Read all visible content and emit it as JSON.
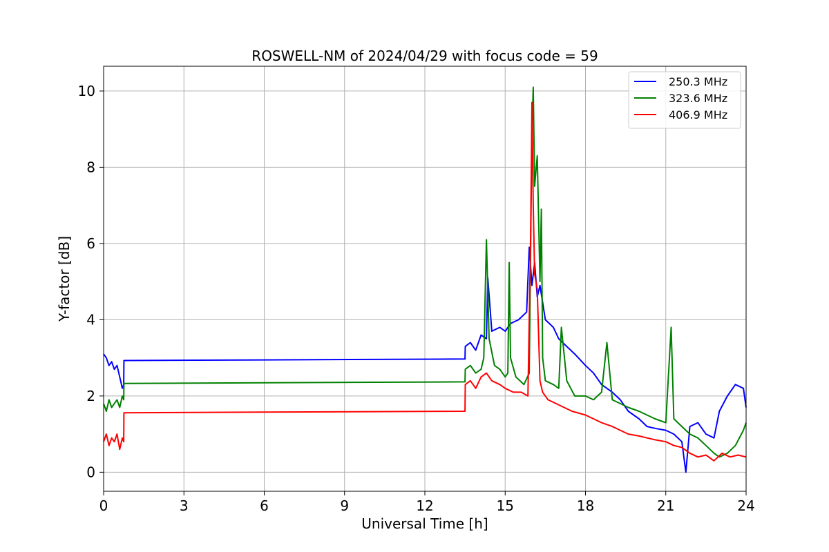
{
  "chart_data": {
    "type": "line",
    "title": "ROSWELL-NM of 2024/04/29 with focus code = 59",
    "xlabel": "Universal Time [h]",
    "ylabel": "Y-factor [dB]",
    "xlim": [
      0,
      24
    ],
    "ylim": [
      -0.5,
      10.65
    ],
    "xticks": [
      0,
      3,
      6,
      9,
      12,
      15,
      18,
      21,
      24
    ],
    "yticks": [
      0,
      2,
      4,
      6,
      8,
      10
    ],
    "grid": true,
    "legend_position": "top-right",
    "series": [
      {
        "name": "250.3 MHz",
        "color": "#0000ff",
        "x": [
          0,
          0.1,
          0.2,
          0.3,
          0.4,
          0.5,
          0.6,
          0.7,
          0.75,
          0.76,
          13.5,
          13.51,
          13.7,
          13.9,
          14.1,
          14.3,
          14.35,
          14.5,
          14.8,
          15.0,
          15.2,
          15.5,
          15.8,
          15.9,
          16.0,
          16.1,
          16.2,
          16.3,
          16.5,
          16.8,
          17.0,
          17.3,
          17.6,
          18.0,
          18.3,
          18.6,
          19.0,
          19.3,
          19.6,
          20.0,
          20.3,
          20.6,
          21.0,
          21.3,
          21.6,
          21.75,
          21.9,
          22.2,
          22.5,
          22.8,
          23.0,
          23.3,
          23.6,
          23.9,
          24.0
        ],
        "y": [
          3.1,
          3.0,
          2.8,
          2.9,
          2.7,
          2.8,
          2.5,
          2.2,
          2.3,
          2.93,
          2.97,
          3.3,
          3.4,
          3.2,
          3.6,
          3.5,
          5.1,
          3.7,
          3.8,
          3.7,
          3.9,
          4.0,
          4.2,
          5.9,
          4.9,
          5.5,
          4.6,
          4.9,
          4.0,
          3.8,
          3.5,
          3.3,
          3.1,
          2.8,
          2.6,
          2.3,
          2.1,
          1.9,
          1.6,
          1.4,
          1.2,
          1.15,
          1.1,
          1.0,
          0.8,
          0.0,
          1.2,
          1.3,
          1.0,
          0.9,
          1.6,
          2.0,
          2.3,
          2.2,
          1.7
        ]
      },
      {
        "name": "323.6 MHz",
        "color": "#008000",
        "x": [
          0,
          0.1,
          0.2,
          0.3,
          0.4,
          0.5,
          0.6,
          0.7,
          0.75,
          0.76,
          13.5,
          13.51,
          13.7,
          13.9,
          14.1,
          14.2,
          14.3,
          14.4,
          14.6,
          14.8,
          15.0,
          15.1,
          15.15,
          15.2,
          15.4,
          15.7,
          15.9,
          16.0,
          16.05,
          16.1,
          16.2,
          16.3,
          16.35,
          16.4,
          16.5,
          16.8,
          17.0,
          17.1,
          17.3,
          17.6,
          18.0,
          18.3,
          18.6,
          18.8,
          19.0,
          19.3,
          19.6,
          20.0,
          20.3,
          20.6,
          21.0,
          21.2,
          21.3,
          21.6,
          21.9,
          22.2,
          22.5,
          22.8,
          23.0,
          23.3,
          23.6,
          23.9,
          24.0
        ],
        "y": [
          1.8,
          1.6,
          1.9,
          1.7,
          1.8,
          1.9,
          1.7,
          2.0,
          1.9,
          2.33,
          2.37,
          2.7,
          2.8,
          2.6,
          2.7,
          3.0,
          6.1,
          3.5,
          2.8,
          2.7,
          2.5,
          2.6,
          5.5,
          3.0,
          2.5,
          2.3,
          2.6,
          8.9,
          10.1,
          7.5,
          8.3,
          5.0,
          6.9,
          3.0,
          2.4,
          2.3,
          2.2,
          3.8,
          2.4,
          2.0,
          2.0,
          1.9,
          2.1,
          3.4,
          1.9,
          1.8,
          1.7,
          1.6,
          1.5,
          1.4,
          1.3,
          3.8,
          1.4,
          1.2,
          1.0,
          0.9,
          0.7,
          0.5,
          0.4,
          0.5,
          0.7,
          1.1,
          1.3
        ]
      },
      {
        "name": "406.9 MHz",
        "color": "#ff0000",
        "x": [
          0,
          0.1,
          0.2,
          0.3,
          0.4,
          0.5,
          0.6,
          0.7,
          0.75,
          0.76,
          13.5,
          13.51,
          13.7,
          13.9,
          14.1,
          14.3,
          14.5,
          14.8,
          15.0,
          15.3,
          15.6,
          15.85,
          15.95,
          16.0,
          16.05,
          16.1,
          16.2,
          16.3,
          16.4,
          16.6,
          16.9,
          17.2,
          17.5,
          18.0,
          18.3,
          18.6,
          19.0,
          19.3,
          19.6,
          20.0,
          20.3,
          20.6,
          21.0,
          21.3,
          21.6,
          21.9,
          22.2,
          22.5,
          22.8,
          23.1,
          23.4,
          23.7,
          24.0
        ],
        "y": [
          0.8,
          1.0,
          0.7,
          0.9,
          0.8,
          1.0,
          0.6,
          0.9,
          0.8,
          1.56,
          1.6,
          2.3,
          2.4,
          2.2,
          2.5,
          2.6,
          2.4,
          2.3,
          2.2,
          2.1,
          2.1,
          2.0,
          6.2,
          9.7,
          7.0,
          5.2,
          4.8,
          2.4,
          2.1,
          1.9,
          1.8,
          1.7,
          1.6,
          1.5,
          1.4,
          1.3,
          1.2,
          1.1,
          1.0,
          0.95,
          0.9,
          0.85,
          0.8,
          0.7,
          0.65,
          0.5,
          0.4,
          0.45,
          0.3,
          0.5,
          0.4,
          0.45,
          0.4
        ]
      }
    ]
  }
}
